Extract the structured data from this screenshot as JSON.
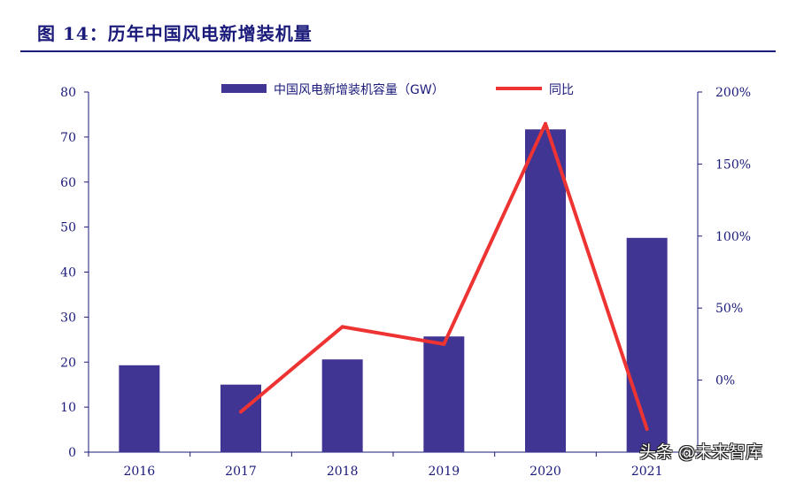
{
  "figure": {
    "title": "图 14：历年中国风电新增装机量",
    "watermark": "头条 @未来智库"
  },
  "colors": {
    "bar": "#413594",
    "line": "#ee3333",
    "axis": "#1a1a7a"
  },
  "chart_data": {
    "type": "bar",
    "categories": [
      "2016",
      "2017",
      "2018",
      "2019",
      "2020",
      "2021"
    ],
    "series": [
      {
        "name": "中国风电新增装机容量（GW）",
        "type": "bar",
        "axis": "left",
        "values": [
          19.3,
          15.0,
          20.6,
          25.7,
          71.7,
          47.6
        ]
      },
      {
        "name": "同比",
        "type": "line",
        "axis": "right",
        "values": [
          null,
          -22.0,
          37.0,
          25.0,
          178.0,
          -34.0
        ]
      }
    ],
    "ylim_left": [
      0,
      80
    ],
    "yticks_left": [
      "0",
      "10",
      "20",
      "30",
      "40",
      "50",
      "60",
      "70",
      "80"
    ],
    "ylim_right": [
      -50,
      200
    ],
    "yticks_right": [
      "0%",
      "50%",
      "100%",
      "150%",
      "200%"
    ],
    "yticks_right_values": [
      0,
      50,
      100,
      150,
      200
    ],
    "legend_position": "top-center",
    "grid": false
  }
}
